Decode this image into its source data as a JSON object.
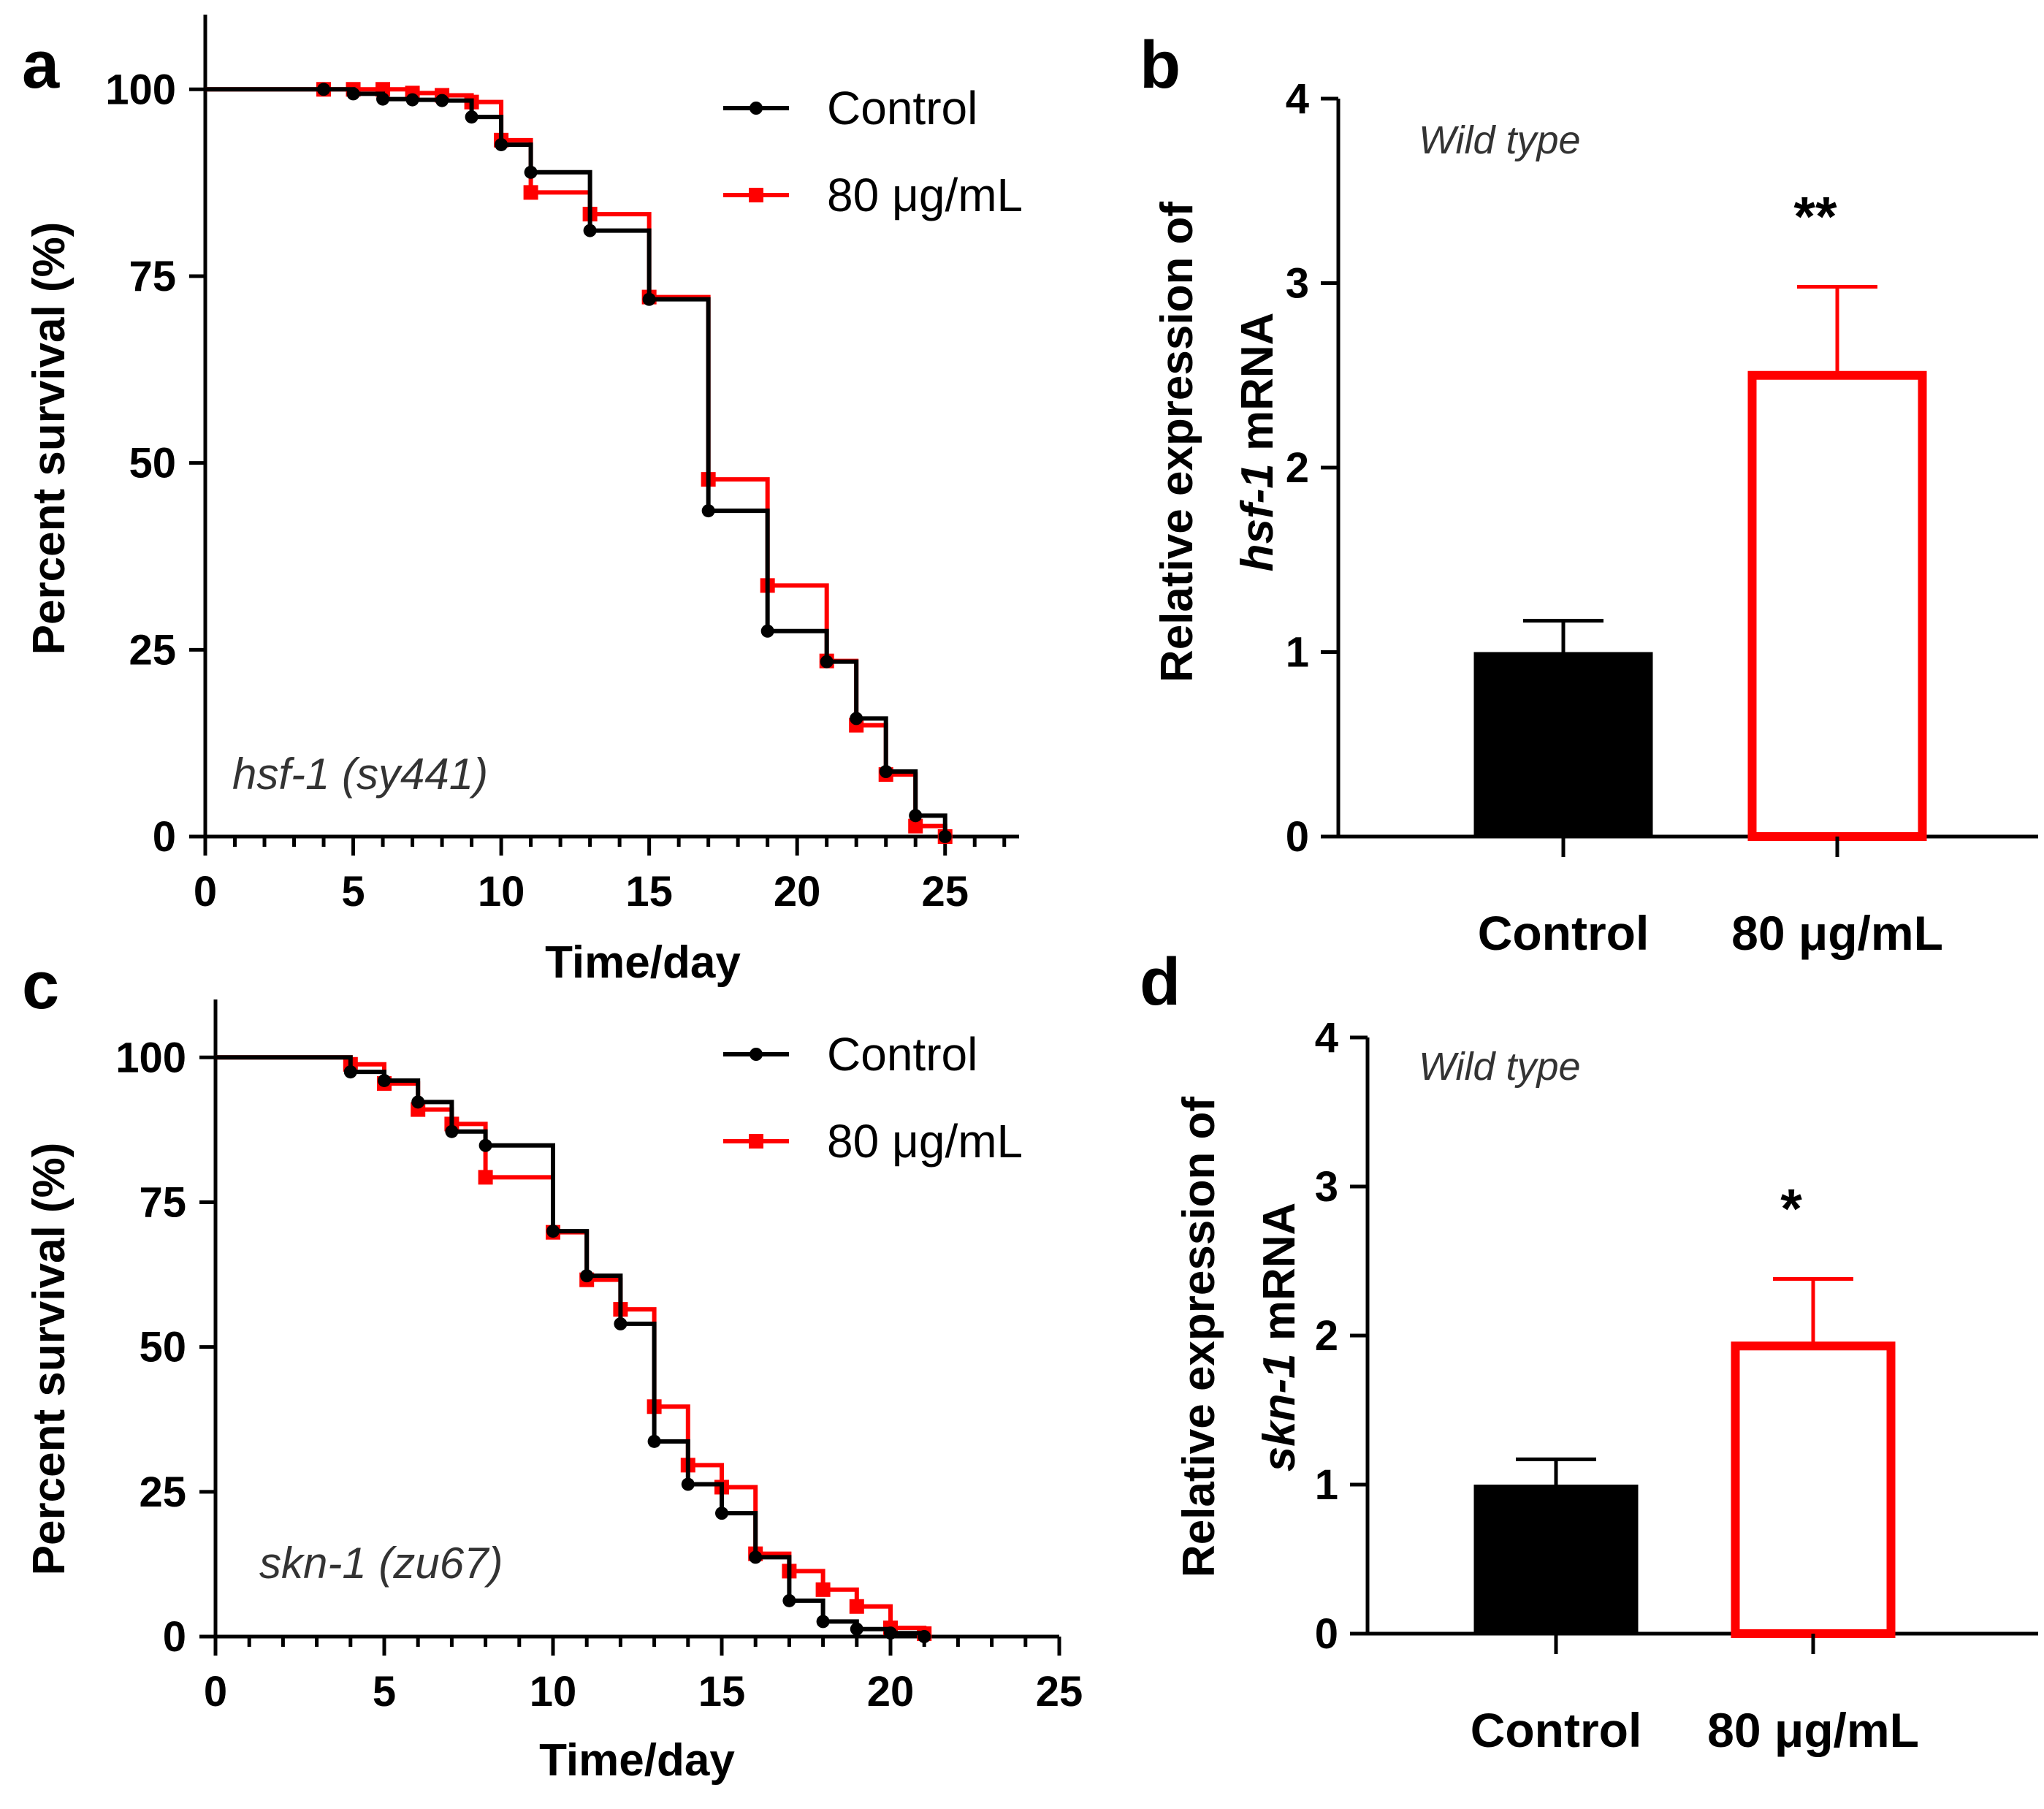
{
  "colors": {
    "control": "#000000",
    "treated": "#ff0000",
    "axis": "#000000"
  },
  "chart_data": [
    {
      "panel": "a",
      "type": "line",
      "subtype": "kaplan-meier survival",
      "strain_label": "hsf-1 (sy441)",
      "xlabel": "Time/day",
      "ylabel": "Percent  survival (%)",
      "xlim": [
        0,
        27.5
      ],
      "ylim": [
        0,
        110
      ],
      "xticks": [
        0,
        5,
        10,
        15,
        20,
        25
      ],
      "yticks": [
        0,
        25,
        50,
        75,
        100
      ],
      "legend_position": "top-right",
      "series": [
        {
          "name": "Control",
          "color": "#000000",
          "x": [
            0,
            4,
            5,
            6,
            7,
            8,
            9,
            10,
            11,
            13,
            15,
            17,
            19,
            21,
            22,
            23,
            24,
            25
          ],
          "y": [
            100,
            100,
            99.4,
            98.7,
            98.6,
            98.5,
            96.3,
            92.6,
            88.9,
            81.1,
            71.9,
            43.6,
            27.5,
            23.4,
            15.8,
            8.7,
            2.8,
            0
          ]
        },
        {
          "name": "80 μg/mL",
          "color": "#ff0000",
          "x": [
            0,
            4,
            5,
            6,
            7,
            8,
            9,
            10,
            11,
            13,
            15,
            17,
            19,
            21,
            22,
            23,
            24,
            25
          ],
          "y": [
            100,
            100,
            100,
            100,
            99.5,
            99.2,
            98.3,
            93.2,
            86.2,
            83.3,
            72.2,
            47.8,
            33.6,
            23.5,
            14.9,
            8.3,
            1.4,
            0
          ]
        }
      ]
    },
    {
      "panel": "b",
      "type": "bar",
      "condition_label": "Wild type",
      "ylabel_line1": "Relative expression of",
      "ylabel_gene": "hsf-1",
      "ylabel_suffix": " mRNA",
      "categories": [
        "Control",
        "80 μg/mL"
      ],
      "values": [
        1.0,
        2.5
      ],
      "errors": [
        0.17,
        0.48
      ],
      "significance": [
        "",
        "**"
      ],
      "ylim": [
        0,
        4
      ],
      "yticks": [
        0,
        1,
        2,
        3,
        4
      ]
    },
    {
      "panel": "c",
      "type": "line",
      "subtype": "kaplan-meier survival",
      "strain_label": "skn-1 (zu67)",
      "xlabel": "Time/day",
      "ylabel": "Percent  survival (%)",
      "xlim": [
        0,
        25
      ],
      "ylim": [
        0,
        110
      ],
      "xticks": [
        0,
        5,
        10,
        15,
        20,
        25
      ],
      "yticks": [
        0,
        25,
        50,
        75,
        100
      ],
      "legend_position": "top-right",
      "series": [
        {
          "name": "Control",
          "color": "#000000",
          "x": [
            0,
            4,
            5,
            6,
            7,
            8,
            10,
            11,
            12,
            13,
            14,
            15,
            16,
            17,
            18,
            19,
            20,
            21
          ],
          "y": [
            100,
            97.5,
            96,
            92.3,
            87.2,
            84.8,
            70,
            62.3,
            54,
            33.7,
            26.3,
            21.3,
            13.7,
            6.2,
            2.6,
            1.3,
            0.6,
            0
          ]
        },
        {
          "name": "80 μg/mL",
          "color": "#ff0000",
          "x": [
            0,
            4,
            5,
            6,
            7,
            8,
            10,
            11,
            12,
            13,
            14,
            15,
            16,
            17,
            18,
            19,
            20,
            21
          ],
          "y": [
            100,
            98.8,
            95.5,
            91,
            88.5,
            79.3,
            69.8,
            61.6,
            56.5,
            39.7,
            29.6,
            25.8,
            14.3,
            11.3,
            8.1,
            5.2,
            1.5,
            0.5
          ]
        }
      ]
    },
    {
      "panel": "d",
      "type": "bar",
      "condition_label": "Wild type",
      "ylabel_line1": "Relative expression of",
      "ylabel_gene": "skn-1",
      "ylabel_suffix": " mRNA",
      "categories": [
        "Control",
        "80 μg/mL"
      ],
      "values": [
        1.0,
        1.93
      ],
      "errors": [
        0.17,
        0.45
      ],
      "significance": [
        "",
        "*"
      ],
      "ylim": [
        0,
        4
      ],
      "yticks": [
        0,
        1,
        2,
        3,
        4
      ]
    }
  ]
}
